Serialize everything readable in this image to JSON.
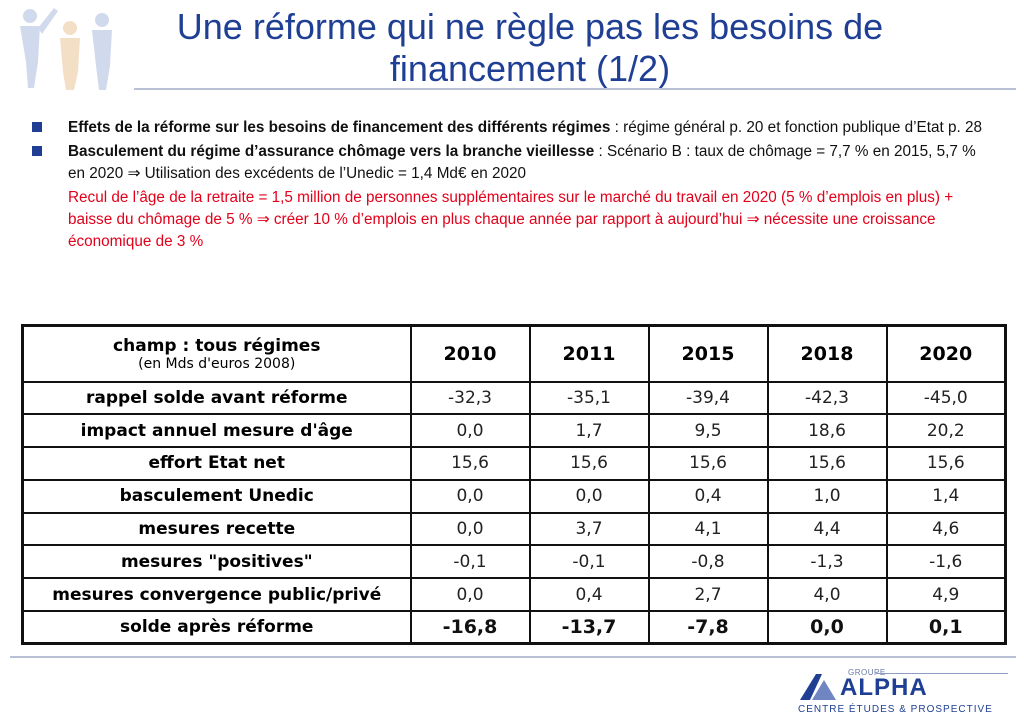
{
  "slide": {
    "title": "Une réforme qui ne règle pas les besoins de financement (1/2)"
  },
  "bullets": [
    {
      "bold": "Effets de la réforme sur les besoins de financement des différents régimes",
      "text": " : régime général p. 20 et fonction publique d’Etat p. 28"
    },
    {
      "bold": "Basculement du régime d’assurance chômage vers la branche vieillesse",
      "text": " : Scénario B : taux de chômage = 7,7 % en 2015, 5,7 % en 2020 ⇒ Utilisation des excédents de l’Unedic = 1,4 Md€ en 2020"
    }
  ],
  "note": "Recul de l’âge de la retraite = 1,5 million de personnes supplémentaires sur le marché du travail en 2020 (5 % d’emplois en plus) + baisse du chômage de 5 % ⇒ créer 10 % d’emplois en plus chaque année par rapport à aujourd’hui ⇒ nécessite une croissance économique de 3 %",
  "table": {
    "header_label": "champ : tous régimes",
    "header_sub": "(en Mds d'euros 2008)",
    "years": [
      "2010",
      "2011",
      "2015",
      "2018",
      "2020"
    ],
    "rows": [
      {
        "label": "rappel solde avant réforme",
        "values": [
          "-32,3",
          "-35,1",
          "-39,4",
          "-42,3",
          "-45,0"
        ]
      },
      {
        "label": "impact annuel mesure d'âge",
        "values": [
          "0,0",
          "1,7",
          "9,5",
          "18,6",
          "20,2"
        ]
      },
      {
        "label": "effort Etat net",
        "values": [
          "15,6",
          "15,6",
          "15,6",
          "15,6",
          "15,6"
        ]
      },
      {
        "label": "basculement Unedic",
        "values": [
          "0,0",
          "0,0",
          "0,4",
          "1,0",
          "1,4"
        ]
      },
      {
        "label": "mesures recette",
        "values": [
          "0,0",
          "3,7",
          "4,1",
          "4,4",
          "4,6"
        ]
      },
      {
        "label": "mesures \"positives\"",
        "values": [
          "-0,1",
          "-0,1",
          "-0,8",
          "-1,3",
          "-1,6"
        ]
      },
      {
        "label": "mesures convergence public/privé",
        "values": [
          "0,0",
          "0,4",
          "2,7",
          "4,0",
          "4,9"
        ]
      },
      {
        "label": "solde après réforme",
        "values": [
          "-16,8",
          "-13,7",
          "-7,8",
          "0,0",
          "0,1"
        ],
        "bold": true
      }
    ]
  },
  "logo": {
    "groupe": "GROUPE",
    "name": "ALPHA",
    "tagline": "CENTRE ÉTUDES & PROSPECTIVE"
  },
  "colors": {
    "title": "#1f3f95",
    "note": "#e2001a",
    "rule": "#b9c0d6"
  }
}
